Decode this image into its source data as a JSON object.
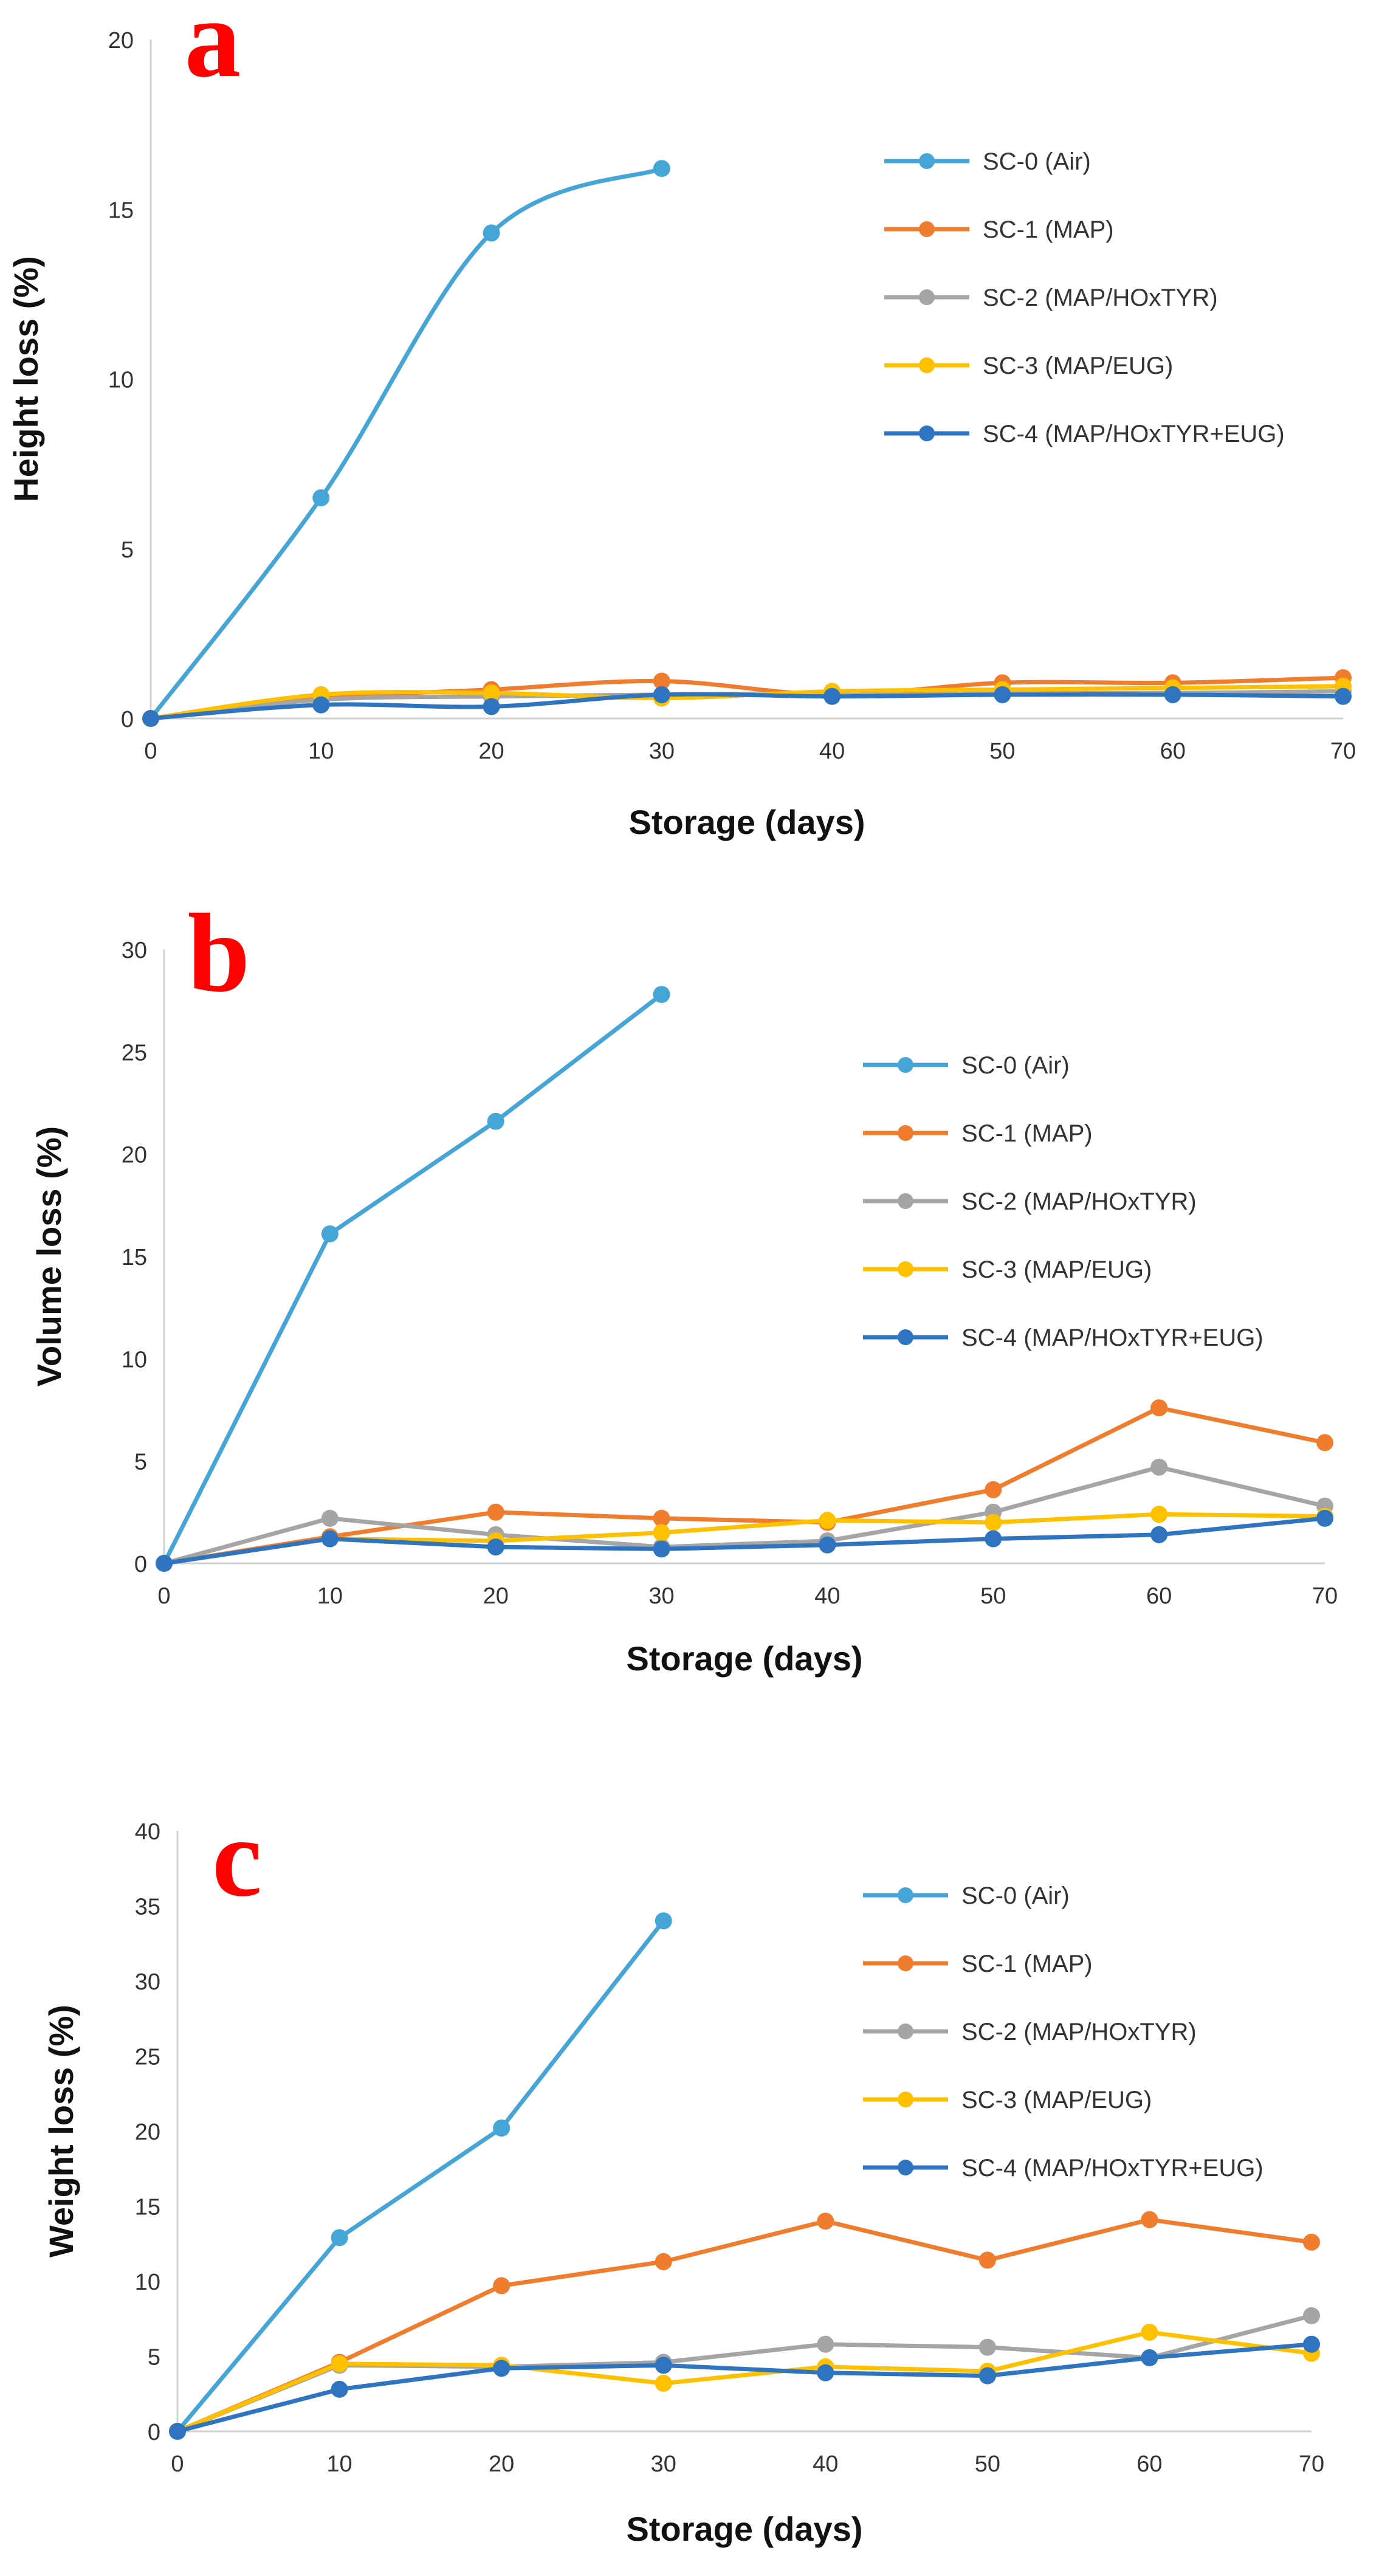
{
  "chart_data": [
    {
      "type": "line",
      "panel_label": "a",
      "title": "",
      "xlabel": "Storage (days)",
      "ylabel": "Height loss (%)",
      "xlim": [
        0,
        70
      ],
      "ylim": [
        0,
        20
      ],
      "x_ticks": [
        0,
        10,
        20,
        30,
        40,
        50,
        60,
        70
      ],
      "y_ticks": [
        0,
        5,
        10,
        15,
        20
      ],
      "grid": false,
      "legend_position": "top-right",
      "series": [
        {
          "name": "SC-0 (Air)",
          "color": "#45a5d6",
          "x": [
            0,
            10,
            20,
            30
          ],
          "values": [
            0,
            6.5,
            14.3,
            16.2
          ]
        },
        {
          "name": "SC-1 (MAP)",
          "color": "#f07c2e",
          "x": [
            0,
            10,
            20,
            30,
            40,
            50,
            60,
            70
          ],
          "values": [
            0,
            0.6,
            0.85,
            1.1,
            0.7,
            1.05,
            1.05,
            1.2
          ]
        },
        {
          "name": "SC-2 (MAP/HOxTYR)",
          "color": "#a5a5a5",
          "x": [
            0,
            10,
            20,
            30,
            40,
            50,
            60,
            70
          ],
          "values": [
            0,
            0.55,
            0.65,
            0.7,
            0.75,
            0.75,
            0.75,
            0.8
          ]
        },
        {
          "name": "SC-3 (MAP/EUG)",
          "color": "#ffc000",
          "x": [
            0,
            10,
            20,
            30,
            40,
            50,
            60,
            70
          ],
          "values": [
            0,
            0.7,
            0.75,
            0.6,
            0.8,
            0.85,
            0.9,
            0.95
          ]
        },
        {
          "name": "SC-4 (MAP/HOxTYR+EUG)",
          "color": "#2e74c0",
          "x": [
            0,
            10,
            20,
            30,
            40,
            50,
            60,
            70
          ],
          "values": [
            0,
            0.4,
            0.35,
            0.7,
            0.65,
            0.7,
            0.7,
            0.65
          ]
        }
      ]
    },
    {
      "type": "line",
      "panel_label": "b",
      "title": "",
      "xlabel": "Storage (days)",
      "ylabel": "Volume loss (%)",
      "xlim": [
        0,
        70
      ],
      "ylim": [
        0,
        30
      ],
      "x_ticks": [
        0,
        10,
        20,
        30,
        40,
        50,
        60,
        70
      ],
      "y_ticks": [
        0,
        5,
        10,
        15,
        20,
        25,
        30
      ],
      "grid": false,
      "legend_position": "right",
      "series": [
        {
          "name": "SC-0 (Air)",
          "color": "#45a5d6",
          "x": [
            0,
            10,
            20,
            30
          ],
          "values": [
            0,
            16.1,
            21.6,
            27.8
          ]
        },
        {
          "name": "SC-1 (MAP)",
          "color": "#f07c2e",
          "x": [
            0,
            10,
            20,
            30,
            40,
            50,
            60,
            70
          ],
          "values": [
            0,
            1.3,
            2.5,
            2.2,
            2.0,
            3.6,
            7.6,
            5.9
          ]
        },
        {
          "name": "SC-2 (MAP/HOxTYR)",
          "color": "#a5a5a5",
          "x": [
            0,
            10,
            20,
            30,
            40,
            50,
            60,
            70
          ],
          "values": [
            0,
            2.2,
            1.4,
            0.8,
            1.1,
            2.5,
            4.7,
            2.8
          ]
        },
        {
          "name": "SC-3 (MAP/EUG)",
          "color": "#ffc000",
          "x": [
            0,
            10,
            20,
            30,
            40,
            50,
            60,
            70
          ],
          "values": [
            0,
            1.2,
            1.1,
            1.5,
            2.1,
            2.0,
            2.4,
            2.3
          ]
        },
        {
          "name": "SC-4 (MAP/HOxTYR+EUG)",
          "color": "#2e74c0",
          "x": [
            0,
            10,
            20,
            30,
            40,
            50,
            60,
            70
          ],
          "values": [
            0,
            1.2,
            0.8,
            0.7,
            0.9,
            1.2,
            1.4,
            2.2
          ]
        }
      ]
    },
    {
      "type": "line",
      "panel_label": "c",
      "title": "",
      "xlabel": "Storage (days)",
      "ylabel": "Weight loss (%)",
      "xlim": [
        0,
        70
      ],
      "ylim": [
        0,
        40
      ],
      "x_ticks": [
        0,
        10,
        20,
        30,
        40,
        50,
        60,
        70
      ],
      "y_ticks": [
        0,
        5,
        10,
        15,
        20,
        25,
        30,
        35,
        40
      ],
      "grid": false,
      "legend_position": "right",
      "series": [
        {
          "name": "SC-0 (Air)",
          "color": "#45a5d6",
          "x": [
            0,
            10,
            20,
            30
          ],
          "values": [
            0,
            12.9,
            20.2,
            34.0
          ]
        },
        {
          "name": "SC-1 (MAP)",
          "color": "#f07c2e",
          "x": [
            0,
            10,
            20,
            30,
            40,
            50,
            60,
            70
          ],
          "values": [
            0,
            4.6,
            9.7,
            11.3,
            14.0,
            11.4,
            14.1,
            12.6
          ]
        },
        {
          "name": "SC-2 (MAP/HOxTYR)",
          "color": "#a5a5a5",
          "x": [
            0,
            10,
            20,
            30,
            40,
            50,
            60,
            70
          ],
          "values": [
            0,
            4.4,
            4.3,
            4.6,
            5.8,
            5.6,
            4.9,
            7.7
          ]
        },
        {
          "name": "SC-3 (MAP/EUG)",
          "color": "#ffc000",
          "x": [
            0,
            10,
            20,
            30,
            40,
            50,
            60,
            70
          ],
          "values": [
            0,
            4.5,
            4.4,
            3.2,
            4.3,
            4.0,
            6.6,
            5.2
          ]
        },
        {
          "name": "SC-4 (MAP/HOxTYR+EUG)",
          "color": "#2e74c0",
          "x": [
            0,
            10,
            20,
            30,
            40,
            50,
            60,
            70
          ],
          "values": [
            0,
            2.8,
            4.2,
            4.4,
            3.9,
            3.7,
            4.9,
            5.8
          ]
        }
      ]
    }
  ]
}
